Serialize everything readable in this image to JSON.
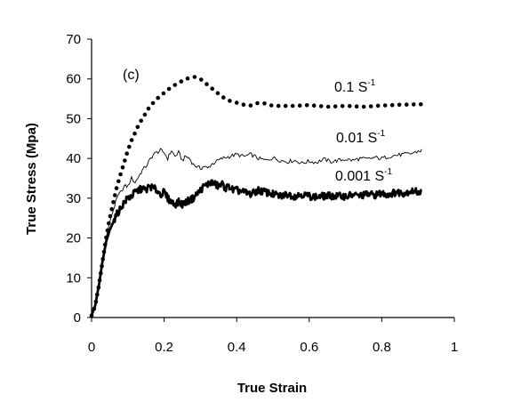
{
  "chart_data": {
    "type": "line",
    "xlabel": "True Strain",
    "ylabel": "True Stress (Mpa)",
    "xlim": [
      0,
      1
    ],
    "ylim": [
      0,
      70
    ],
    "xticks": [
      "0",
      "0.2",
      "0.4",
      "0.6",
      "0.8",
      "1"
    ],
    "yticks": [
      "0",
      "10",
      "20",
      "30",
      "40",
      "50",
      "60",
      "70"
    ],
    "grid": false,
    "panel_label": "(c)",
    "series": [
      {
        "name_base": "0.1 S",
        "name_sup": "-1",
        "style": "dotted",
        "x": [
          0.0,
          0.01,
          0.02,
          0.03,
          0.04,
          0.05,
          0.06,
          0.07,
          0.08,
          0.09,
          0.1,
          0.11,
          0.12,
          0.13,
          0.14,
          0.15,
          0.16,
          0.18,
          0.2,
          0.22,
          0.24,
          0.26,
          0.28,
          0.29,
          0.3,
          0.32,
          0.34,
          0.36,
          0.38,
          0.4,
          0.42,
          0.44,
          0.46,
          0.48,
          0.5,
          0.55,
          0.6,
          0.65,
          0.7,
          0.75,
          0.8,
          0.85,
          0.9,
          0.91
        ],
        "y": [
          0.5,
          3,
          8,
          14,
          20,
          25,
          29,
          33,
          36,
          39,
          42,
          44.5,
          46.5,
          48.5,
          50,
          51.5,
          53,
          55,
          56.5,
          58,
          59,
          60,
          60.5,
          60.5,
          60,
          58.5,
          57,
          55.5,
          54.5,
          54,
          53.5,
          53.3,
          54,
          53.8,
          53.2,
          53.2,
          53.4,
          53,
          53.2,
          53,
          53.3,
          53.5,
          53.6,
          53.6
        ]
      },
      {
        "name_base": "0.01 S",
        "name_sup": "-1",
        "style": "thin",
        "x": [
          0.0,
          0.01,
          0.02,
          0.03,
          0.04,
          0.05,
          0.06,
          0.07,
          0.08,
          0.09,
          0.1,
          0.11,
          0.12,
          0.13,
          0.14,
          0.15,
          0.16,
          0.17,
          0.18,
          0.19,
          0.2,
          0.21,
          0.22,
          0.23,
          0.24,
          0.25,
          0.26,
          0.27,
          0.28,
          0.29,
          0.3,
          0.31,
          0.32,
          0.33,
          0.34,
          0.35,
          0.36,
          0.38,
          0.4,
          0.42,
          0.44,
          0.46,
          0.48,
          0.5,
          0.52,
          0.54,
          0.56,
          0.58,
          0.6,
          0.62,
          0.64,
          0.66,
          0.68,
          0.7,
          0.72,
          0.74,
          0.76,
          0.78,
          0.8,
          0.82,
          0.84,
          0.86,
          0.88,
          0.9,
          0.91
        ],
        "y": [
          0.5,
          3,
          8,
          14,
          20,
          24,
          27,
          30,
          31.5,
          33,
          33,
          35,
          34,
          35.5,
          37,
          38,
          39.5,
          41,
          41.5,
          42,
          41.5,
          40,
          42,
          40.5,
          41.5,
          39.5,
          40.5,
          40,
          38.5,
          38,
          37.5,
          38,
          37.5,
          38.5,
          39,
          39.5,
          40,
          40.5,
          41,
          40.5,
          41,
          40,
          39.5,
          40.2,
          39.5,
          39.2,
          39.5,
          38.8,
          39.3,
          39,
          39.8,
          39.2,
          39.5,
          39.8,
          39.5,
          40,
          39.8,
          40.2,
          40,
          40.5,
          40.8,
          41,
          41.2,
          41.8,
          42
        ]
      },
      {
        "name_base": "0.001 S",
        "name_sup": "-1",
        "style": "thick",
        "x": [
          0.0,
          0.01,
          0.02,
          0.03,
          0.04,
          0.05,
          0.06,
          0.07,
          0.08,
          0.09,
          0.1,
          0.11,
          0.12,
          0.13,
          0.14,
          0.15,
          0.16,
          0.17,
          0.18,
          0.19,
          0.2,
          0.21,
          0.22,
          0.23,
          0.24,
          0.25,
          0.26,
          0.27,
          0.28,
          0.29,
          0.3,
          0.31,
          0.32,
          0.33,
          0.34,
          0.35,
          0.36,
          0.37,
          0.38,
          0.39,
          0.4,
          0.42,
          0.44,
          0.46,
          0.48,
          0.5,
          0.52,
          0.54,
          0.56,
          0.58,
          0.6,
          0.62,
          0.64,
          0.66,
          0.68,
          0.7,
          0.72,
          0.74,
          0.76,
          0.78,
          0.8,
          0.82,
          0.84,
          0.86,
          0.88,
          0.9,
          0.91
        ],
        "y": [
          0.5,
          3,
          8,
          14,
          19,
          22,
          24,
          26,
          27.5,
          29,
          30,
          30.5,
          31.5,
          32,
          32.5,
          32,
          33,
          32.5,
          32,
          31,
          31.5,
          30,
          29,
          28.5,
          29,
          28.5,
          29,
          29.5,
          30,
          31,
          32,
          33,
          33.5,
          34,
          33.5,
          33,
          33.5,
          32.5,
          33,
          32,
          32,
          31.5,
          31,
          32,
          31.5,
          31,
          30.5,
          31,
          30.5,
          31,
          30.5,
          30.3,
          30.5,
          30.6,
          30.5,
          30.5,
          30.8,
          30.6,
          31,
          30.8,
          31.2,
          31,
          31.5,
          31.3,
          31.8,
          31.6,
          31.5
        ]
      }
    ]
  }
}
